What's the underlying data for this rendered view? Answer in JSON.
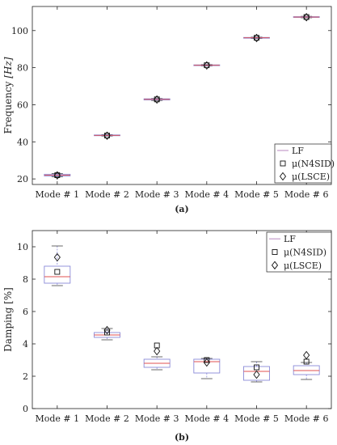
{
  "chart_data": [
    {
      "type": "box",
      "caption": "(a)",
      "categories": [
        "Mode # 1",
        "Mode # 2",
        "Mode # 3",
        "Mode # 4",
        "Mode # 5",
        "Mode # 6"
      ],
      "ylabel_text": "Frequency ",
      "ylabel_unit": "[Hz]",
      "ylim": [
        17,
        113
      ],
      "yticks": [
        20,
        40,
        60,
        80,
        100
      ],
      "grid": false,
      "legend_placement": "bottom-right",
      "legend": [
        "LF",
        "μ(N4SID)",
        "μ(LSCE)"
      ],
      "boxes": [
        {
          "min": 21.2,
          "q1": 21.6,
          "median": 22.0,
          "q3": 22.5,
          "max": 22.9
        },
        {
          "min": 43.1,
          "q1": 43.3,
          "median": 43.5,
          "q3": 43.7,
          "max": 43.9
        },
        {
          "min": 62.3,
          "q1": 62.6,
          "median": 62.9,
          "q3": 63.2,
          "max": 63.4
        },
        {
          "min": 80.9,
          "q1": 81.1,
          "median": 81.3,
          "q3": 81.5,
          "max": 81.7
        },
        {
          "min": 95.7,
          "q1": 95.9,
          "median": 96.1,
          "q3": 96.3,
          "max": 96.5
        },
        {
          "min": 106.9,
          "q1": 107.1,
          "median": 107.3,
          "q3": 107.5,
          "max": 107.7
        }
      ],
      "n4sid": [
        22.0,
        43.4,
        62.9,
        81.3,
        96.1,
        107.3
      ],
      "lsce": [
        21.9,
        43.3,
        62.8,
        81.2,
        96.0,
        107.2
      ]
    },
    {
      "type": "box",
      "caption": "(b)",
      "categories": [
        "Mode # 1",
        "Mode # 2",
        "Mode # 3",
        "Mode # 4",
        "Mode # 5",
        "Mode # 6"
      ],
      "ylabel_text": "Damping [%]",
      "ylim": [
        0,
        11
      ],
      "yticks": [
        0,
        2,
        4,
        6,
        8,
        10
      ],
      "grid": false,
      "legend_placement": "top-right",
      "legend": [
        "LF",
        "μ(N4SID)",
        "μ(LSCE)"
      ],
      "boxes": [
        {
          "min": 7.6,
          "q1": 7.75,
          "median": 8.15,
          "q3": 8.8,
          "max": 10.05
        },
        {
          "min": 4.25,
          "q1": 4.4,
          "median": 4.55,
          "q3": 4.7,
          "max": 4.95
        },
        {
          "min": 2.4,
          "q1": 2.55,
          "median": 2.8,
          "q3": 3.05,
          "max": 3.2
        },
        {
          "min": 1.85,
          "q1": 2.2,
          "median": 2.9,
          "q3": 3.05,
          "max": 3.1
        },
        {
          "min": 1.65,
          "q1": 1.75,
          "median": 2.3,
          "q3": 2.6,
          "max": 2.9
        },
        {
          "min": 1.8,
          "q1": 2.1,
          "median": 2.35,
          "q3": 2.65,
          "max": 2.85
        }
      ],
      "n4sid": [
        8.45,
        4.7,
        3.9,
        3.0,
        2.55,
        2.9
      ],
      "lsce": [
        9.35,
        4.85,
        3.55,
        2.85,
        2.1,
        3.3
      ]
    }
  ]
}
